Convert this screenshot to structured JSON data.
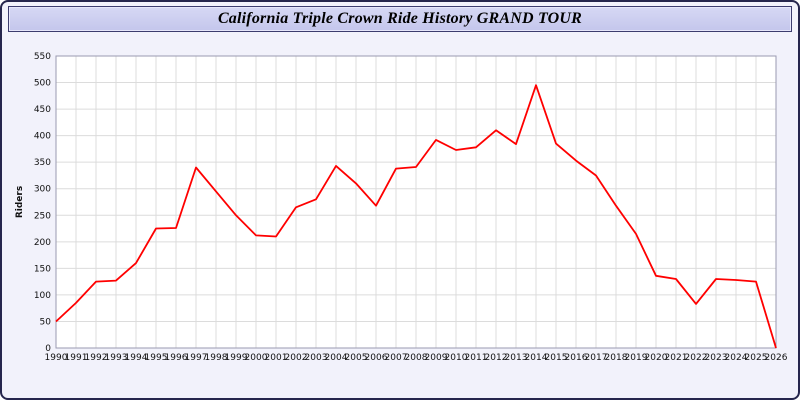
{
  "chart_data": {
    "type": "line",
    "title": "California Triple Crown Ride History GRAND TOUR",
    "xlabel": "",
    "ylabel": "Riders",
    "ylim": [
      0,
      550
    ],
    "ytick_step": 50,
    "grid": true,
    "legend": "none",
    "line_color": "#ff0000",
    "x": [
      1990,
      1991,
      1992,
      1993,
      1994,
      1995,
      1996,
      1997,
      1998,
      1999,
      2000,
      2001,
      2002,
      2003,
      2004,
      2005,
      2006,
      2007,
      2008,
      2009,
      2010,
      2011,
      2012,
      2013,
      2014,
      2015,
      2016,
      2017,
      2018,
      2019,
      2020,
      2021,
      2022,
      2023,
      2024,
      2025,
      2026
    ],
    "values": [
      50,
      85,
      125,
      127,
      160,
      225,
      226,
      340,
      295,
      250,
      212,
      210,
      265,
      280,
      343,
      310,
      268,
      338,
      341,
      392,
      373,
      378,
      410,
      384,
      495,
      385,
      353,
      325,
      268,
      215,
      136,
      130,
      83,
      130,
      128,
      125,
      0
    ]
  },
  "colors": {
    "page_background": "#f2f2fb",
    "title_bar_background": "#ccccee",
    "frame_border": "#26264d",
    "plot_background": "#ffffff",
    "gridline": "#dcdcdc",
    "line": "#ff0000"
  }
}
